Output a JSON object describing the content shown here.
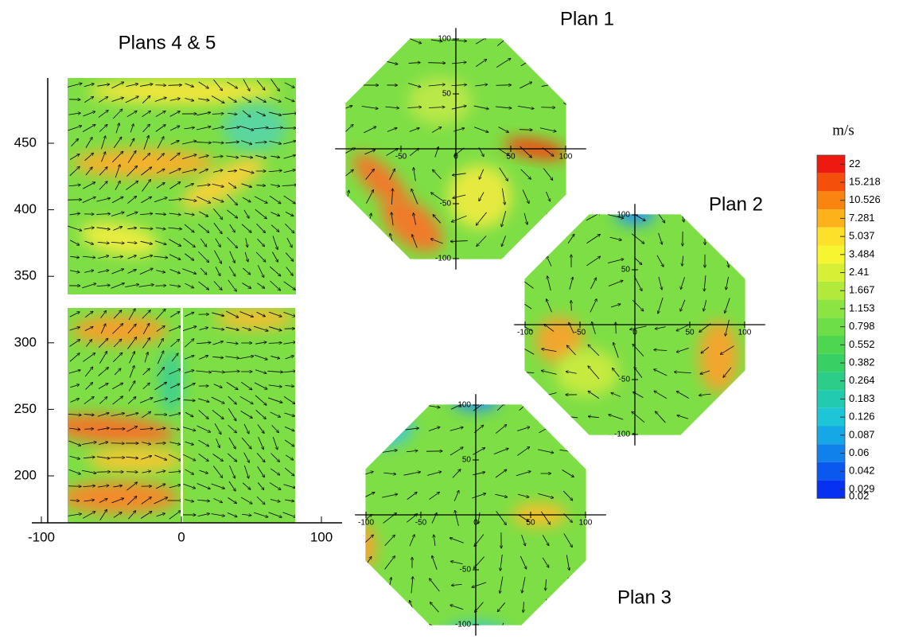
{
  "chart_data": [
    {
      "type": "vector-field",
      "title": "Plans 4 & 5",
      "xlim": [
        -107,
        115
      ],
      "ylim": [
        165,
        500
      ],
      "xticks": [
        -100,
        0,
        100
      ],
      "yticks": [
        200,
        250,
        300,
        350,
        400,
        450
      ]
    },
    {
      "type": "plan",
      "title": "Plan 1",
      "xlim": [
        -110,
        110
      ],
      "ylim": [
        -110,
        110
      ],
      "xticks": [
        -50,
        0,
        50,
        100
      ],
      "yticks": [
        -100,
        -50,
        50,
        100
      ]
    },
    {
      "type": "plan",
      "title": "Plan 2",
      "xlim": [
        -110,
        110
      ],
      "ylim": [
        -110,
        110
      ],
      "xticks": [
        -100,
        -50,
        0,
        50,
        100
      ],
      "yticks": [
        -100,
        -50,
        50,
        100
      ]
    },
    {
      "type": "plan",
      "title": "Plan 3",
      "xlim": [
        -110,
        110
      ],
      "ylim": [
        -110,
        110
      ],
      "xticks": [
        -100,
        -50,
        0,
        50,
        100
      ],
      "yticks": [
        -100,
        -50,
        50,
        100
      ]
    },
    {
      "type": "colorbar",
      "title": "m/s",
      "levels": [
        22,
        15.218,
        10.526,
        7.281,
        5.037,
        3.484,
        2.41,
        1.667,
        1.153,
        0.798,
        0.552,
        0.382,
        0.264,
        0.183,
        0.126,
        0.087,
        0.06,
        0.042,
        0.029,
        0.02
      ],
      "colors": [
        "#ee1a10",
        "#f4500c",
        "#f98410",
        "#fcb21a",
        "#fde02a",
        "#f6f530",
        "#d7f036",
        "#b2ea3c",
        "#8ce442",
        "#6ede48",
        "#4fd650",
        "#38d064",
        "#2ccd88",
        "#22cbb0",
        "#1cc6d6",
        "#16a8e6",
        "#1080ea",
        "#0a58ee",
        "#0630f2"
      ]
    }
  ]
}
